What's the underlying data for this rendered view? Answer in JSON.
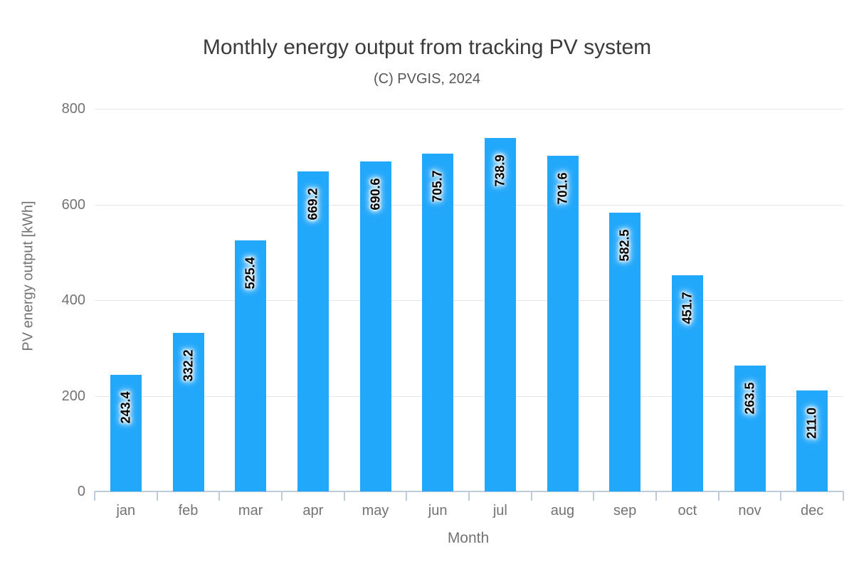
{
  "chart_data": {
    "type": "bar",
    "title": "Monthly energy output from tracking PV system",
    "subtitle": "(C) PVGIS, 2024",
    "xlabel": "Month",
    "ylabel": "PV energy output [kWh]",
    "categories": [
      "jan",
      "feb",
      "mar",
      "apr",
      "may",
      "jun",
      "jul",
      "aug",
      "sep",
      "oct",
      "nov",
      "dec"
    ],
    "values": [
      243.4,
      332.2,
      525.4,
      669.2,
      690.6,
      705.7,
      738.9,
      701.6,
      582.5,
      451.7,
      263.5,
      211.0
    ],
    "value_labels": [
      "243.4",
      "332.2",
      "525.4",
      "669.2",
      "690.6",
      "705.7",
      "738.9",
      "701.6",
      "582.5",
      "451.7",
      "263.5",
      "211.0"
    ],
    "ylim": [
      0,
      800
    ],
    "yticks": [
      0,
      200,
      400,
      600,
      800
    ],
    "grid": "horizontal",
    "legend": "none",
    "colors": {
      "bar": "#22a8fa",
      "axis_line": "#bfcbdc",
      "gridline": "#e4e4e4",
      "tick_label": "#737373",
      "title": "#3b3b3b",
      "subtitle": "#565656",
      "value_label": "#000000"
    }
  }
}
